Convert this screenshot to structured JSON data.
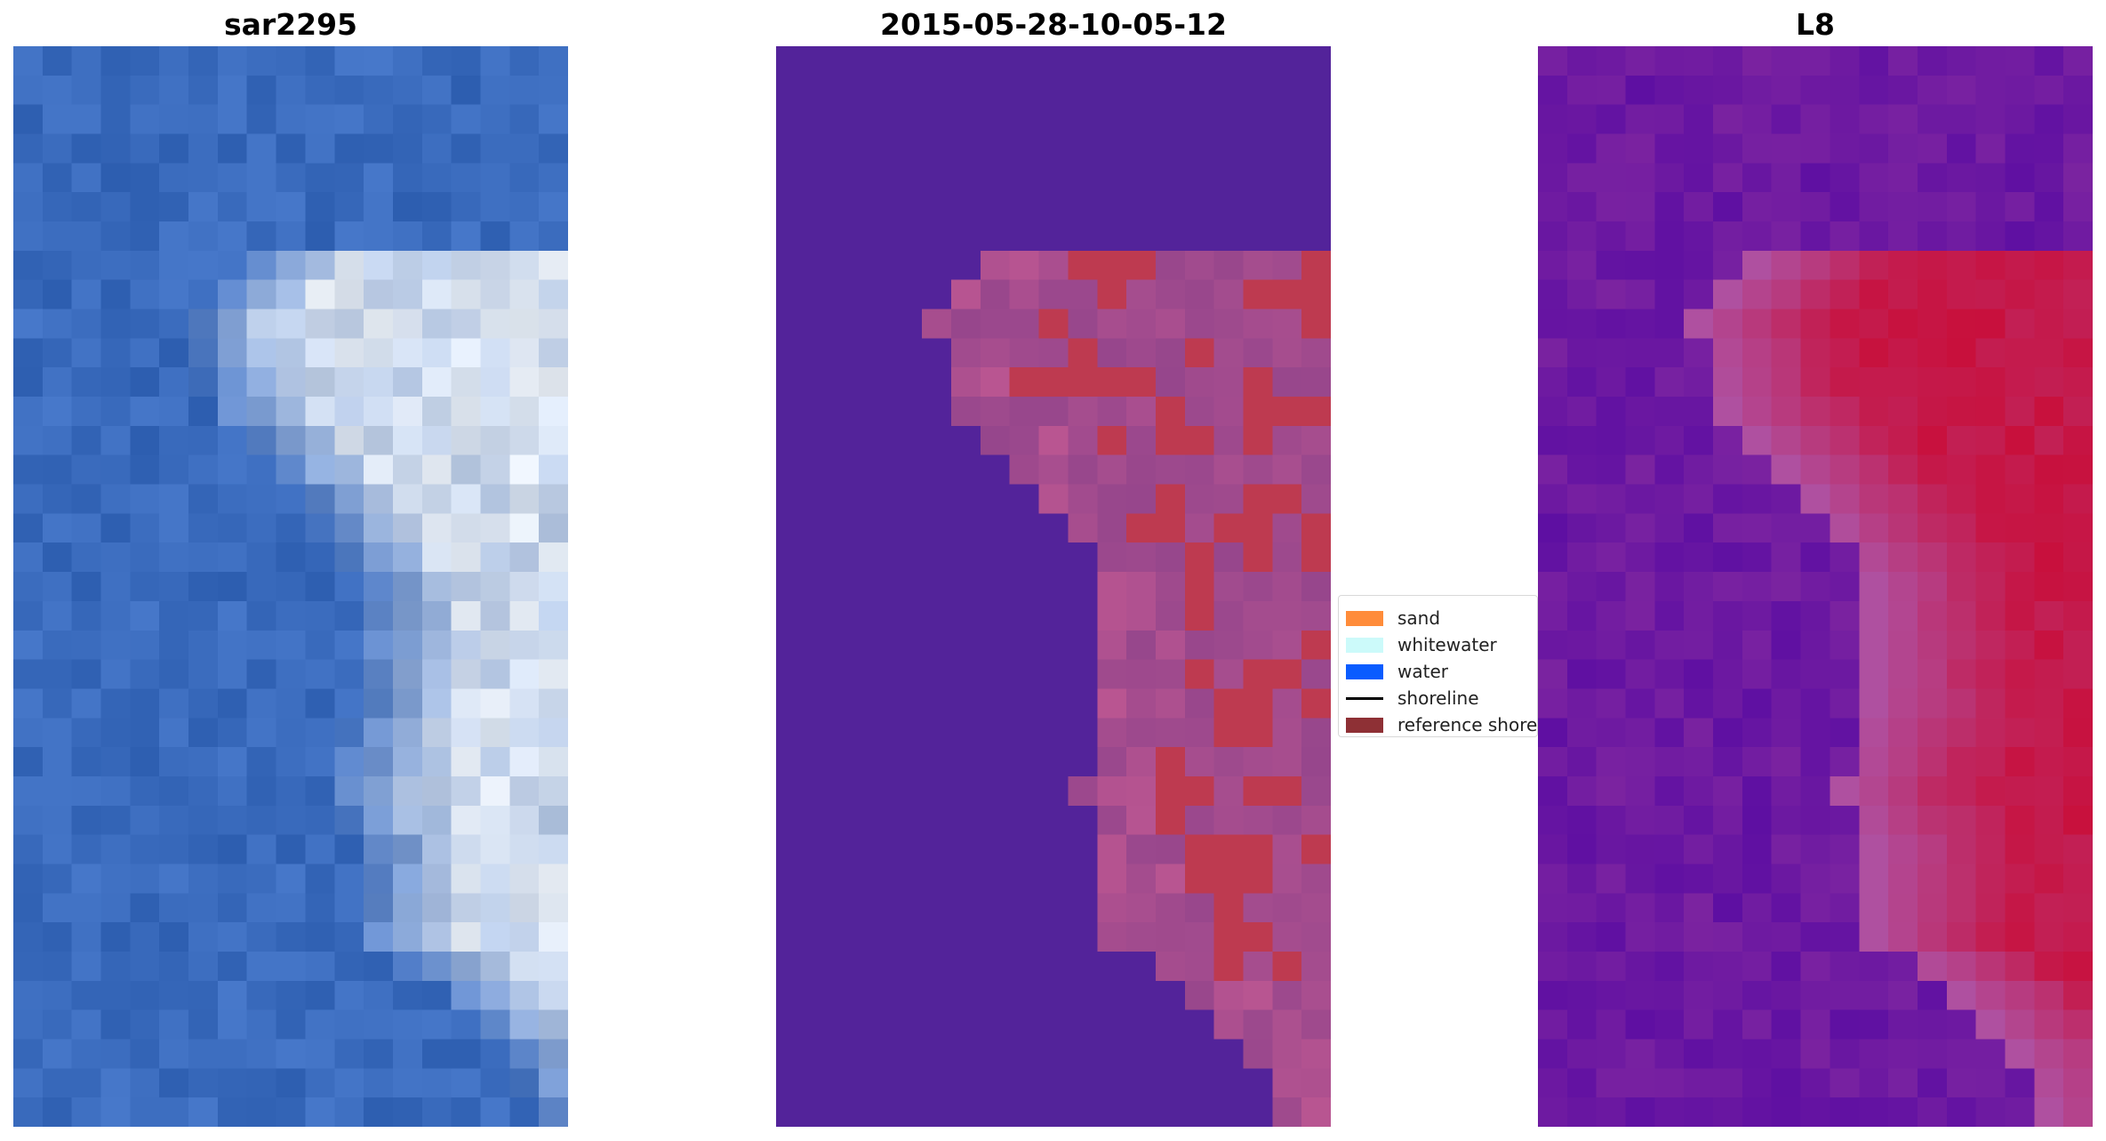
{
  "panels": [
    {
      "title": "sar2295",
      "icon": "satellite-rgb-image"
    },
    {
      "title": "2015-05-28-10-05-12",
      "icon": "classification-overlay-image"
    },
    {
      "title": "L8",
      "icon": "index-heatmap-image"
    }
  ],
  "legend": {
    "items": [
      {
        "label": "sand",
        "color": "#ff8c3a",
        "kind": "patch"
      },
      {
        "label": "whitewater",
        "color": "#ccfafa",
        "kind": "patch"
      },
      {
        "label": "water",
        "color": "#0a5cff",
        "kind": "patch"
      },
      {
        "label": "shoreline",
        "color": "#000000",
        "kind": "line"
      },
      {
        "label": "reference shoreline",
        "color": "#8e3035",
        "kind": "patch"
      }
    ]
  },
  "colors": {
    "classification_water": "#53239a",
    "classification_reference": "#be3a50",
    "sar_water": "#3a6bbd",
    "sar_whitewater": "#e8eef5",
    "l8_low": "#5e0fa2",
    "l8_high": "#c8103c"
  }
}
